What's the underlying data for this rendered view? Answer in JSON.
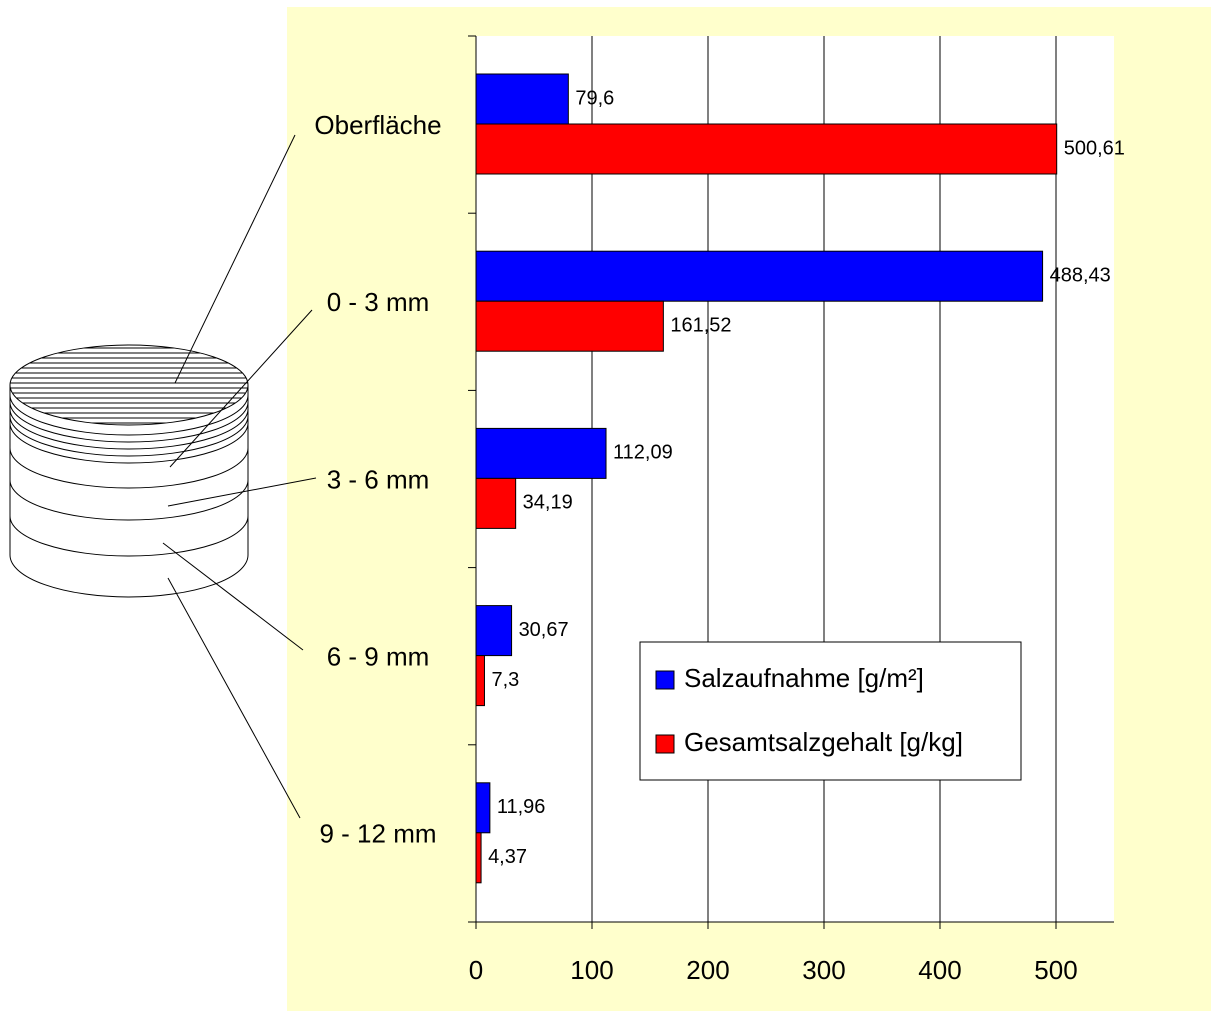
{
  "chart_data": {
    "type": "bar",
    "orientation": "horizontal",
    "categories": [
      "Oberfläche",
      "0 - 3 mm",
      "3 - 6 mm",
      "6 - 9 mm",
      "9 - 12 mm"
    ],
    "series": [
      {
        "name": "Salzaufnahme [g/m²]",
        "color": "#0000ff",
        "values": [
          79.6,
          488.43,
          112.09,
          30.67,
          11.96
        ],
        "value_labels": [
          "79,6",
          "488,43",
          "112,09",
          "30,67",
          "11,96"
        ]
      },
      {
        "name": "Gesamtsalzgehalt [g/kg]",
        "color": "#ff0000",
        "values": [
          500.61,
          161.52,
          34.19,
          7.3,
          4.37
        ],
        "value_labels": [
          "500,61",
          "161,52",
          "34,19",
          "7,3",
          "4,37"
        ]
      }
    ],
    "xlim": [
      0,
      550
    ],
    "xticks": [
      0,
      100,
      200,
      300,
      400,
      500
    ],
    "grid": true,
    "legend": "lower-right"
  }
}
